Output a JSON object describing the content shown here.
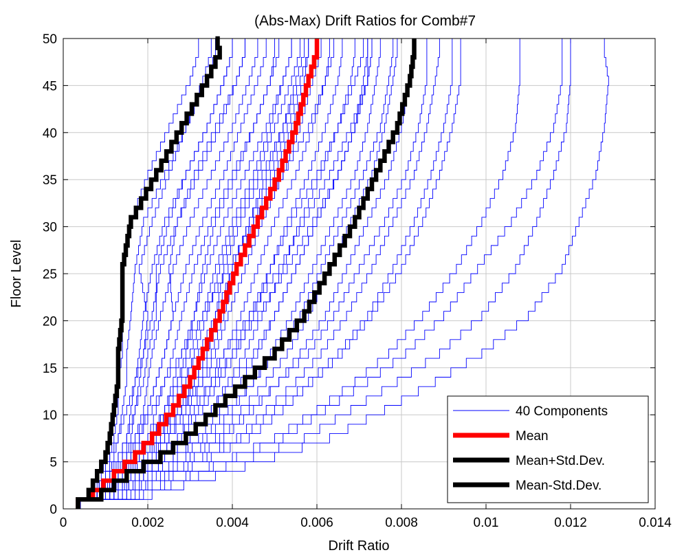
{
  "chart_data": {
    "type": "line",
    "title": "(Abs-Max) Drift Ratios for Comb#7",
    "xlabel": "Drift Ratio",
    "ylabel": "Floor Level",
    "xlim": [
      0,
      0.014
    ],
    "ylim": [
      0,
      50
    ],
    "x_ticks": [
      "0",
      "0.002",
      "0.004",
      "0.006",
      "0.008",
      "0.01",
      "0.012",
      "0.014"
    ],
    "y_ticks": [
      "0",
      "5",
      "10",
      "15",
      "20",
      "25",
      "30",
      "35",
      "40",
      "45",
      "50"
    ],
    "grid": true,
    "step_plot": true,
    "legend_position": "bottom-right",
    "colors": {
      "components": "#0000ff",
      "mean": "#ff0000",
      "std": "#000000"
    },
    "floors": [
      0,
      1,
      3,
      5,
      7,
      10,
      13,
      16,
      20,
      25,
      30,
      35,
      40,
      45,
      48,
      50
    ],
    "series": [
      {
        "name": "Mean",
        "legend": "Mean",
        "color": "#ff0000",
        "width": "thick",
        "x": [
          0.00035,
          0.0007,
          0.0012,
          0.0017,
          0.0021,
          0.0026,
          0.003,
          0.0033,
          0.0037,
          0.0041,
          0.0046,
          0.0051,
          0.0055,
          0.0058,
          0.006,
          0.006
        ]
      },
      {
        "name": "Mean+Std.Dev.",
        "legend": "Mean+Std.Dev.",
        "color": "#000000",
        "width": "thick",
        "x": [
          0.00035,
          0.0009,
          0.0015,
          0.0023,
          0.0029,
          0.0036,
          0.0043,
          0.005,
          0.0057,
          0.0063,
          0.0069,
          0.0074,
          0.0079,
          0.0082,
          0.0083,
          0.0083
        ]
      },
      {
        "name": "Mean-Std.Dev.",
        "legend": "Mean-Std.Dev.",
        "color": "#000000",
        "width": "thick",
        "x": [
          0.00035,
          0.0006,
          0.0008,
          0.001,
          0.0011,
          0.0012,
          0.0013,
          0.0013,
          0.0014,
          0.0014,
          0.0016,
          0.0022,
          0.0028,
          0.0034,
          0.0037,
          0.0036
        ]
      }
    ],
    "components": {
      "legend": "40 Components",
      "color": "#0000ff",
      "x": [
        [
          0.0004,
          0.0006,
          0.0009,
          0.0011,
          0.0012,
          0.0013,
          0.0013,
          0.0014,
          0.0014,
          0.0014,
          0.0016,
          0.002,
          0.0025,
          0.003,
          0.0032,
          0.0032
        ],
        [
          0.0004,
          0.0007,
          0.001,
          0.0012,
          0.0013,
          0.0014,
          0.0015,
          0.0015,
          0.0016,
          0.0017,
          0.0019,
          0.0024,
          0.0029,
          0.0034,
          0.0036,
          0.0036
        ],
        [
          0.0004,
          0.0007,
          0.001,
          0.0013,
          0.0015,
          0.0016,
          0.0017,
          0.0018,
          0.0019,
          0.0021,
          0.0024,
          0.0029,
          0.0034,
          0.0038,
          0.004,
          0.004
        ],
        [
          0.0004,
          0.0008,
          0.0011,
          0.0014,
          0.0016,
          0.0017,
          0.0018,
          0.0019,
          0.0021,
          0.0023,
          0.0027,
          0.0032,
          0.0037,
          0.0041,
          0.0043,
          0.0043
        ],
        [
          0.0004,
          0.0008,
          0.0012,
          0.0015,
          0.0017,
          0.0019,
          0.002,
          0.0021,
          0.0023,
          0.0026,
          0.003,
          0.0035,
          0.004,
          0.0044,
          0.0046,
          0.0046
        ],
        [
          0.0004,
          0.0008,
          0.0012,
          0.0016,
          0.0018,
          0.002,
          0.0022,
          0.0024,
          0.0026,
          0.0029,
          0.0033,
          0.0038,
          0.0042,
          0.0046,
          0.0048,
          0.0048
        ],
        [
          0.0004,
          0.0009,
          0.0013,
          0.0017,
          0.002,
          0.0022,
          0.0024,
          0.0026,
          0.0028,
          0.0031,
          0.0035,
          0.004,
          0.0045,
          0.0049,
          0.0051,
          0.0051
        ],
        [
          0.0004,
          0.0009,
          0.0014,
          0.0018,
          0.0021,
          0.0024,
          0.0026,
          0.0028,
          0.0031,
          0.0034,
          0.0038,
          0.0043,
          0.0048,
          0.0052,
          0.0054,
          0.0054
        ],
        [
          0.0004,
          0.001,
          0.0015,
          0.0019,
          0.0023,
          0.0026,
          0.0029,
          0.0031,
          0.0034,
          0.0037,
          0.0041,
          0.0046,
          0.005,
          0.0054,
          0.0056,
          0.0056
        ],
        [
          0.0004,
          0.001,
          0.0015,
          0.002,
          0.0024,
          0.0028,
          0.0031,
          0.0034,
          0.0037,
          0.004,
          0.0044,
          0.0049,
          0.0053,
          0.0057,
          0.0058,
          0.0058
        ],
        [
          0.0004,
          0.001,
          0.0016,
          0.0021,
          0.0025,
          0.0029,
          0.0033,
          0.0036,
          0.0039,
          0.0043,
          0.0047,
          0.0052,
          0.0056,
          0.0059,
          0.0061,
          0.0061
        ],
        [
          0.0004,
          0.0011,
          0.0017,
          0.0022,
          0.0027,
          0.0031,
          0.0035,
          0.0038,
          0.0042,
          0.0046,
          0.005,
          0.0055,
          0.0059,
          0.0062,
          0.0063,
          0.0063
        ],
        [
          0.0004,
          0.0011,
          0.0017,
          0.0023,
          0.0028,
          0.0033,
          0.0037,
          0.0041,
          0.0045,
          0.0049,
          0.0053,
          0.0058,
          0.0062,
          0.0065,
          0.0066,
          0.0066
        ],
        [
          0.0004,
          0.0012,
          0.0018,
          0.0024,
          0.003,
          0.0035,
          0.0039,
          0.0043,
          0.0047,
          0.0052,
          0.0056,
          0.0061,
          0.0065,
          0.0068,
          0.0069,
          0.0069
        ],
        [
          0.0004,
          0.0012,
          0.0019,
          0.0026,
          0.0032,
          0.0037,
          0.0042,
          0.0046,
          0.005,
          0.0055,
          0.006,
          0.0065,
          0.0069,
          0.0071,
          0.0072,
          0.0072
        ],
        [
          0.0004,
          0.0013,
          0.002,
          0.0027,
          0.0034,
          0.004,
          0.0045,
          0.0049,
          0.0054,
          0.0059,
          0.0064,
          0.0069,
          0.0072,
          0.0074,
          0.0075,
          0.0075
        ],
        [
          0.0004,
          0.0013,
          0.0021,
          0.0029,
          0.0036,
          0.0042,
          0.0048,
          0.0053,
          0.0058,
          0.0063,
          0.0068,
          0.0073,
          0.0076,
          0.0078,
          0.0079,
          0.0079
        ],
        [
          0.0004,
          0.0014,
          0.0023,
          0.0031,
          0.0038,
          0.0045,
          0.0051,
          0.0056,
          0.0062,
          0.0067,
          0.0072,
          0.0077,
          0.008,
          0.0082,
          0.0083,
          0.0083
        ],
        [
          0.0004,
          0.0015,
          0.0024,
          0.0033,
          0.0041,
          0.0048,
          0.0055,
          0.0061,
          0.0067,
          0.0073,
          0.0078,
          0.0083,
          0.0086,
          0.0088,
          0.0089,
          0.0089
        ],
        [
          0.0004,
          0.0016,
          0.0026,
          0.0035,
          0.0044,
          0.0052,
          0.0059,
          0.0066,
          0.0073,
          0.008,
          0.0085,
          0.0089,
          0.0092,
          0.0094,
          0.0094,
          0.0094
        ],
        [
          0.0004,
          0.0017,
          0.0029,
          0.004,
          0.005,
          0.006,
          0.0069,
          0.0077,
          0.0085,
          0.0093,
          0.0099,
          0.0104,
          0.0107,
          0.0108,
          0.0108,
          0.0108
        ],
        [
          0.0004,
          0.0019,
          0.0032,
          0.0045,
          0.0057,
          0.0068,
          0.0079,
          0.0089,
          0.0099,
          0.0107,
          0.0112,
          0.0116,
          0.0119,
          0.012,
          0.012,
          0.012
        ],
        [
          0.0004,
          0.0021,
          0.0036,
          0.005,
          0.0063,
          0.0076,
          0.0088,
          0.0099,
          0.011,
          0.0118,
          0.0122,
          0.0126,
          0.0128,
          0.0129,
          0.0128,
          0.0128
        ],
        [
          0.0004,
          0.0007,
          0.0011,
          0.0015,
          0.0018,
          0.0021,
          0.0024,
          0.0028,
          0.0033,
          0.0039,
          0.0045,
          0.0052,
          0.0058,
          0.0062,
          0.0064,
          0.0064
        ],
        [
          0.0004,
          0.0008,
          0.0013,
          0.0018,
          0.0023,
          0.0028,
          0.0033,
          0.0038,
          0.0044,
          0.0051,
          0.0057,
          0.0063,
          0.0068,
          0.0072,
          0.0073,
          0.0073
        ],
        [
          0.0004,
          0.0006,
          0.001,
          0.0014,
          0.0017,
          0.002,
          0.0022,
          0.0024,
          0.0026,
          0.0025,
          0.0027,
          0.0031,
          0.0036,
          0.0041,
          0.0043,
          0.0043
        ],
        [
          0.0004,
          0.0007,
          0.0012,
          0.0017,
          0.0022,
          0.0027,
          0.0031,
          0.0034,
          0.0036,
          0.0038,
          0.0042,
          0.0047,
          0.0052,
          0.0056,
          0.0058,
          0.0058
        ],
        [
          0.0004,
          0.0009,
          0.0014,
          0.0019,
          0.0024,
          0.0028,
          0.0032,
          0.0035,
          0.0038,
          0.0041,
          0.0045,
          0.005,
          0.0054,
          0.0058,
          0.006,
          0.006
        ],
        [
          0.0004,
          0.001,
          0.0016,
          0.0022,
          0.0027,
          0.0032,
          0.0036,
          0.004,
          0.0044,
          0.0049,
          0.0054,
          0.006,
          0.0065,
          0.0069,
          0.0071,
          0.0071
        ],
        [
          0.0004,
          0.0011,
          0.0018,
          0.0024,
          0.003,
          0.0035,
          0.004,
          0.0045,
          0.005,
          0.0055,
          0.006,
          0.0065,
          0.0069,
          0.0072,
          0.0073,
          0.0073
        ],
        [
          0.0004,
          0.0006,
          0.0008,
          0.0011,
          0.0013,
          0.0015,
          0.0017,
          0.0019,
          0.002,
          0.0018,
          0.0021,
          0.0025,
          0.0029,
          0.0033,
          0.0035,
          0.0035
        ],
        [
          0.0004,
          0.0007,
          0.001,
          0.0013,
          0.0015,
          0.0017,
          0.0019,
          0.002,
          0.0022,
          0.0022,
          0.0025,
          0.0029,
          0.0034,
          0.0038,
          0.004,
          0.004
        ],
        [
          0.0004,
          0.0009,
          0.0013,
          0.0017,
          0.0021,
          0.0025,
          0.0028,
          0.0032,
          0.0036,
          0.004,
          0.0044,
          0.0048,
          0.0052,
          0.0055,
          0.0057,
          0.0057
        ],
        [
          0.0004,
          0.0012,
          0.0019,
          0.0026,
          0.0033,
          0.0039,
          0.0045,
          0.005,
          0.0056,
          0.0061,
          0.0066,
          0.0071,
          0.0075,
          0.0077,
          0.0078,
          0.0078
        ],
        [
          0.0004,
          0.0015,
          0.0025,
          0.0034,
          0.0042,
          0.005,
          0.0058,
          0.0065,
          0.0072,
          0.0078,
          0.0083,
          0.0087,
          0.009,
          0.0092,
          0.0092,
          0.0092
        ],
        [
          0.0004,
          0.0018,
          0.003,
          0.0041,
          0.0052,
          0.0062,
          0.0072,
          0.0081,
          0.009,
          0.0098,
          0.0106,
          0.0112,
          0.0116,
          0.0118,
          0.0118,
          0.0118
        ],
        [
          0.0004,
          0.0008,
          0.0012,
          0.0016,
          0.002,
          0.0024,
          0.0027,
          0.003,
          0.0033,
          0.0036,
          0.004,
          0.0045,
          0.0049,
          0.0052,
          0.0054,
          0.0054
        ],
        [
          0.0004,
          0.0009,
          0.0013,
          0.0017,
          0.0021,
          0.0024,
          0.0027,
          0.0029,
          0.0031,
          0.0033,
          0.0036,
          0.0041,
          0.0045,
          0.0049,
          0.005,
          0.005
        ],
        [
          0.0004,
          0.0014,
          0.0022,
          0.003,
          0.0037,
          0.0044,
          0.0051,
          0.0058,
          0.0064,
          0.007,
          0.0076,
          0.0081,
          0.0084,
          0.0086,
          0.0086,
          0.0086
        ],
        [
          0.0004,
          0.001,
          0.0015,
          0.002,
          0.0025,
          0.003,
          0.0035,
          0.004,
          0.0046,
          0.0053,
          0.0059,
          0.0065,
          0.0069,
          0.0072,
          0.0072,
          0.0072
        ]
      ]
    }
  }
}
